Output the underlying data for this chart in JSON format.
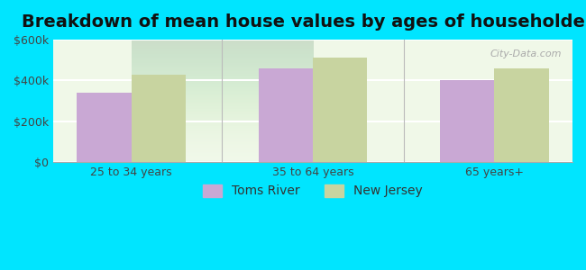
{
  "title": "Breakdown of mean house values by ages of householders",
  "categories": [
    "25 to 34 years",
    "35 to 64 years",
    "65 years+"
  ],
  "toms_river": [
    340000,
    460000,
    400000
  ],
  "new_jersey": [
    430000,
    510000,
    460000
  ],
  "bar_color_tr": "#c9a8d4",
  "bar_color_nj": "#c8d4a0",
  "background_outer": "#00e5ff",
  "background_inner": "#f0f8e8",
  "ylim": [
    0,
    600000
  ],
  "yticks": [
    0,
    200000,
    400000,
    600000
  ],
  "ytick_labels": [
    "$0",
    "$200k",
    "$400k",
    "$600k"
  ],
  "legend_tr": "Toms River",
  "legend_nj": "New Jersey",
  "title_fontsize": 14,
  "tick_fontsize": 9,
  "legend_fontsize": 10
}
